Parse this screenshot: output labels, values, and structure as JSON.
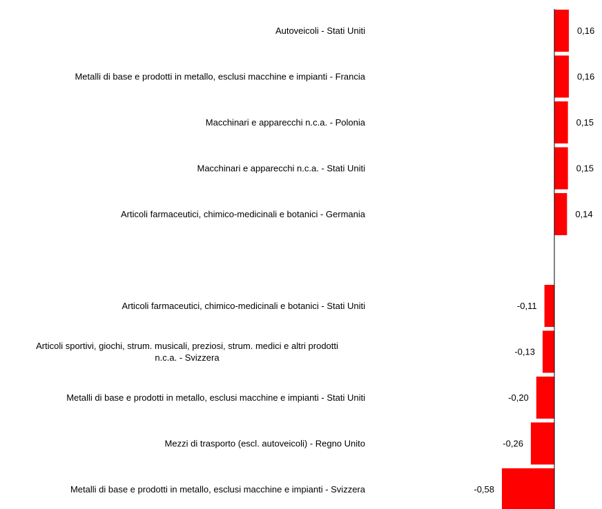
{
  "colors": {
    "bar": "#ff0000",
    "axis": "#000000",
    "text": "#000000"
  },
  "chart_data": {
    "type": "bar",
    "orientation": "horizontal",
    "grid": false,
    "title": "",
    "xlabel": "",
    "ylabel": "",
    "xlim": [
      -0.6,
      0.2
    ],
    "categories": [
      "Autoveicoli - Stati Uniti",
      "Metalli di base e prodotti in metallo, esclusi macchine e impianti - Francia",
      "Macchinari e apparecchi n.c.a. - Polonia",
      "Macchinari e apparecchi n.c.a. - Stati Uniti",
      "Articoli farmaceutici, chimico-medicinali e botanici - Germania",
      "",
      "Articoli farmaceutici, chimico-medicinali e botanici - Stati Uniti",
      "Articoli sportivi, giochi, strum. musicali, preziosi, strum. medici e altri prodotti n.c.a. - Svizzera",
      "Metalli di base e prodotti in metallo, esclusi macchine e impianti - Stati Uniti",
      "Mezzi di trasporto (escl. autoveicoli) - Regno Unito",
      "Metalli di base e prodotti in metallo, esclusi macchine e impianti - Svizzera"
    ],
    "category_lines": [
      [
        "Autoveicoli - Stati Uniti"
      ],
      [
        "Metalli di base e prodotti in metallo, esclusi macchine e impianti - Francia"
      ],
      [
        "Macchinari e apparecchi n.c.a. - Polonia"
      ],
      [
        "Macchinari e apparecchi n.c.a. - Stati Uniti"
      ],
      [
        "Articoli farmaceutici, chimico-medicinali e botanici - Germania"
      ],
      [],
      [
        "Articoli farmaceutici, chimico-medicinali e botanici - Stati Uniti"
      ],
      [
        "Articoli sportivi, giochi, strum. musicali, preziosi, strum. medici e altri prodotti",
        "n.c.a. - Svizzera"
      ],
      [
        "Metalli di base e prodotti in metallo, esclusi macchine e impianti - Stati Uniti"
      ],
      [
        "Mezzi di trasporto (escl. autoveicoli) - Regno Unito"
      ],
      [
        "Metalli di base e prodotti in metallo, esclusi macchine e impianti - Svizzera"
      ]
    ],
    "values": [
      0.16,
      0.16,
      0.15,
      0.15,
      0.14,
      null,
      -0.11,
      -0.13,
      -0.2,
      -0.26,
      -0.58
    ],
    "value_labels": [
      "0,16",
      "0,16",
      "0,15",
      "0,15",
      "0,14",
      "",
      "-0,11",
      "-0,13",
      "-0,20",
      "-0,26",
      "-0,58"
    ]
  }
}
